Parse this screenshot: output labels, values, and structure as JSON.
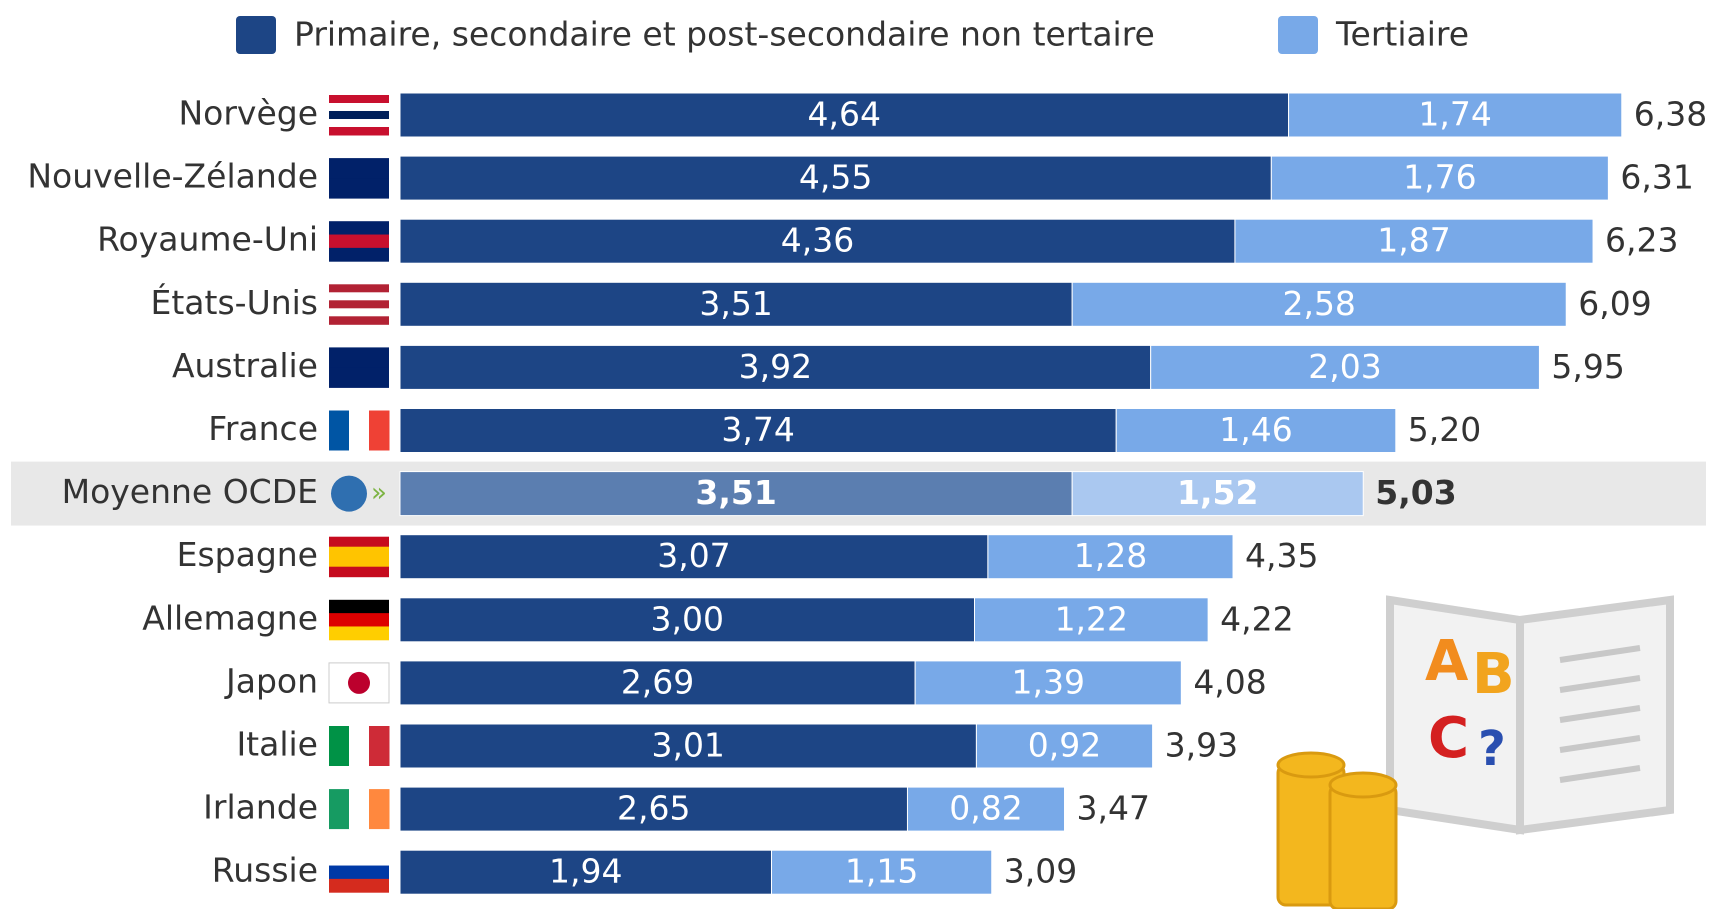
{
  "chart_data": {
    "type": "stacked-bar-horizontal",
    "categories": [
      "Norvège",
      "Nouvelle-Zélande",
      "Royaume-Uni",
      "États-Unis",
      "Australie",
      "France",
      "Moyenne OCDE",
      "Espagne",
      "Allemagne",
      "Japon",
      "Italie",
      "Irlande",
      "Russie"
    ],
    "series": [
      {
        "name": "Primaire, secondaire et post-secondaire non tertaire",
        "color": "#1d4585",
        "values": [
          4.64,
          4.55,
          4.36,
          3.51,
          3.92,
          3.74,
          3.51,
          3.07,
          3.0,
          2.69,
          3.01,
          2.65,
          1.94
        ],
        "value_labels": [
          "4,64",
          "4,55",
          "4,36",
          "3,51",
          "3,92",
          "3,74",
          "3,51",
          "3,07",
          "3,00",
          "2,69",
          "3,01",
          "2,65",
          "1,94"
        ]
      },
      {
        "name": "Tertiaire",
        "color": "#78a9e8",
        "values": [
          1.74,
          1.76,
          1.87,
          2.58,
          2.03,
          1.46,
          1.52,
          1.28,
          1.22,
          1.39,
          0.92,
          0.82,
          1.15
        ],
        "value_labels": [
          "1,74",
          "1,76",
          "1,87",
          "2,58",
          "2,03",
          "1,46",
          "1,52",
          "1,28",
          "1,22",
          "1,39",
          "0,92",
          "0,82",
          "1,15"
        ]
      }
    ],
    "totals": [
      6.38,
      6.31,
      6.23,
      6.09,
      5.95,
      5.2,
      5.03,
      4.35,
      4.22,
      4.08,
      3.93,
      3.47,
      3.09
    ],
    "total_labels": [
      "6,38",
      "6,31",
      "6,23",
      "6,09",
      "5,95",
      "5,20",
      "5,03",
      "4,35",
      "4,22",
      "4,08",
      "3,93",
      "3,47",
      "3,09"
    ],
    "highlight": "Moyenne OCDE",
    "highlight_colors": [
      "#5b7eb0",
      "#aac8f0"
    ]
  }
}
